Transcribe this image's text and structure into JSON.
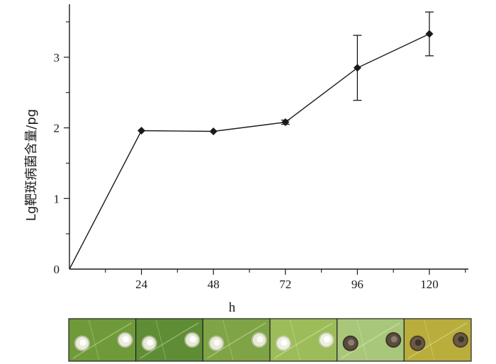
{
  "chart_data": {
    "type": "line",
    "title": "",
    "xlabel": "h",
    "ylabel": "Lg靶斑病菌含量/pg",
    "x": [
      0,
      24,
      48,
      72,
      96,
      120
    ],
    "x_tick_labels": [
      "24",
      "48",
      "72",
      "96",
      "120"
    ],
    "y_tick_labels": [
      "0",
      "1",
      "2",
      "3"
    ],
    "xlim": [
      0,
      133
    ],
    "ylim": [
      0,
      3.75
    ],
    "series": [
      {
        "values": [
          0,
          1.96,
          1.95,
          2.08,
          2.85,
          3.33
        ],
        "error": [
          0,
          0,
          0,
          0.03,
          0.46,
          0.31
        ]
      }
    ],
    "marker": "diamond",
    "line_color": "#1a1a1a",
    "grid": false,
    "legend": "none"
  },
  "leaf_panels": [
    {
      "leaf_color": "#6f9a3a",
      "spot_color": "#e9ecdc",
      "spot_inner": "#ffffff",
      "ring": "#b9bfa0"
    },
    {
      "leaf_color": "#5f8d35",
      "spot_color": "#e6ead8",
      "spot_inner": "#ffffff",
      "ring": "#b3ba98"
    },
    {
      "leaf_color": "#7ea445",
      "spot_color": "#e7ead6",
      "spot_inner": "#fbfbf4",
      "ring": "#b8bf9d"
    },
    {
      "leaf_color": "#9cbc5a",
      "spot_color": "#eef0de",
      "spot_inner": "#ffffff",
      "ring": "#c4c9a8"
    },
    {
      "leaf_color": "#a9c77a",
      "spot_color": "#5a4c3e",
      "spot_inner": "#8b7e6c",
      "ring": "#3f352b"
    },
    {
      "leaf_color": "#b9ad3c",
      "spot_color": "#6a5a45",
      "spot_inner": "#3e3428",
      "ring": "#4a3d2f"
    }
  ]
}
